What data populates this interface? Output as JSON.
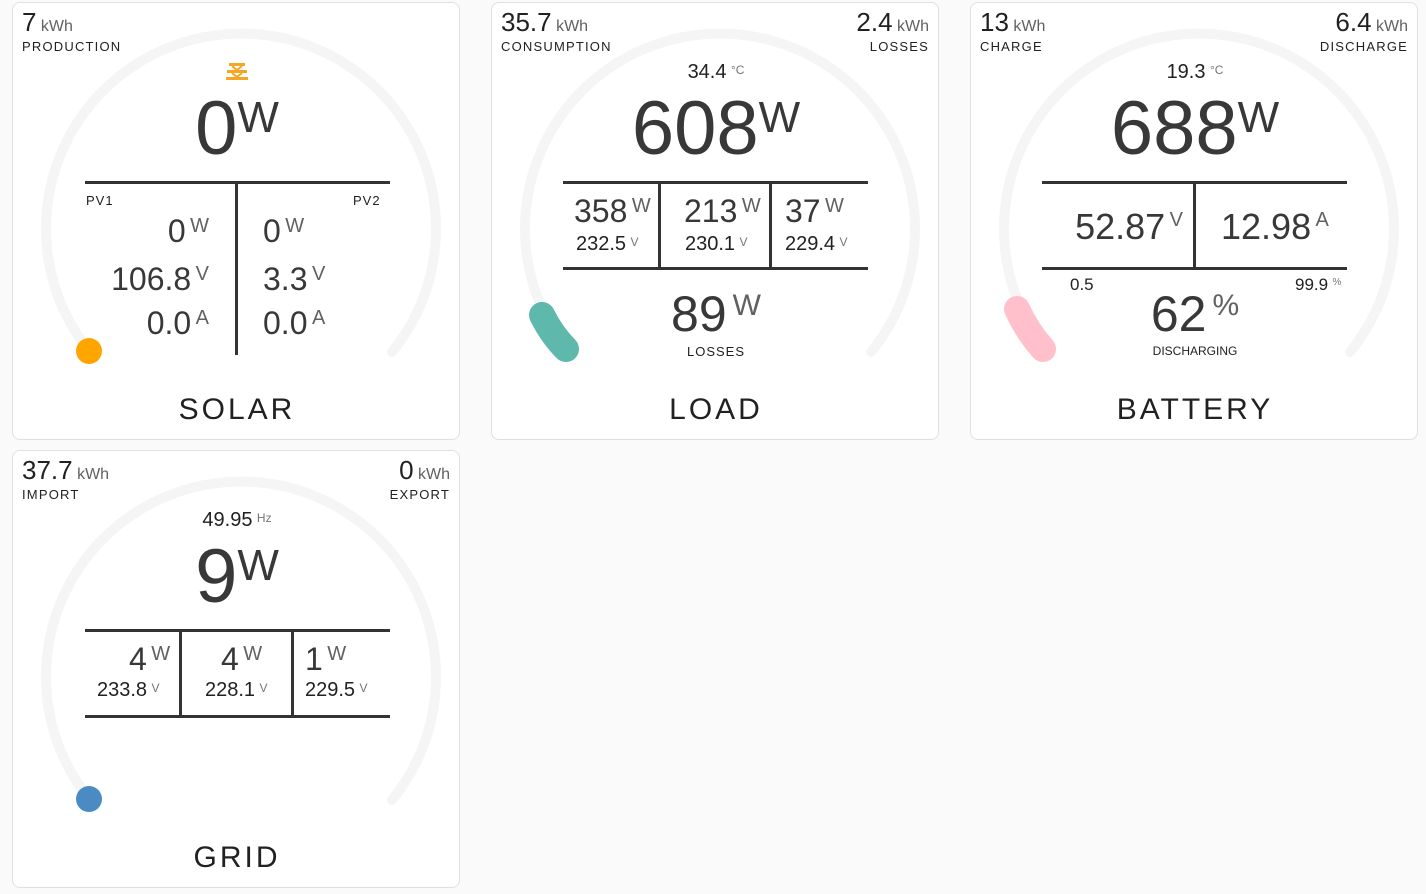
{
  "solar": {
    "title": "SOLAR",
    "production": {
      "value": "7",
      "unit": "kWh",
      "label": "PRODUCTION"
    },
    "power": {
      "value": "0",
      "unit": "W"
    },
    "pv1": {
      "label": "PV1",
      "power": "0",
      "power_unit": "W",
      "voltage": "106.8",
      "voltage_unit": "V",
      "current": "0.0",
      "current_unit": "A"
    },
    "pv2": {
      "label": "PV2",
      "power": "0",
      "power_unit": "W",
      "voltage": "3.3",
      "voltage_unit": "V",
      "current": "0.0",
      "current_unit": "A"
    },
    "indicator_color": "#ffa500",
    "icon": "solar-panel-sun-icon"
  },
  "load": {
    "title": "LOAD",
    "consumption": {
      "value": "35.7",
      "unit": "kWh",
      "label": "CONSUMPTION"
    },
    "losses_energy": {
      "value": "2.4",
      "unit": "kWh",
      "label": "LOSSES"
    },
    "temperature": {
      "value": "34.4",
      "unit": "°C"
    },
    "power": {
      "value": "608",
      "unit": "W"
    },
    "phases": [
      {
        "power": "358",
        "power_unit": "W",
        "voltage": "232.5",
        "voltage_unit": "V"
      },
      {
        "power": "213",
        "power_unit": "W",
        "voltage": "230.1",
        "voltage_unit": "V"
      },
      {
        "power": "37",
        "power_unit": "W",
        "voltage": "229.4",
        "voltage_unit": "V"
      }
    ],
    "losses_power": {
      "value": "89",
      "unit": "W",
      "label": "LOSSES"
    },
    "indicator_color": "#5fb8ac"
  },
  "battery": {
    "title": "BATTERY",
    "charge": {
      "value": "13",
      "unit": "kWh",
      "label": "CHARGE"
    },
    "discharge": {
      "value": "6.4",
      "unit": "kWh",
      "label": "DISCHARGE"
    },
    "temperature": {
      "value": "19.3",
      "unit": "°C"
    },
    "power": {
      "value": "688",
      "unit": "W"
    },
    "voltage": {
      "value": "52.87",
      "unit": "V"
    },
    "current": {
      "value": "12.98",
      "unit": "A"
    },
    "min_label": "0.5",
    "max_label": "99.9",
    "max_unit": "%",
    "soc": {
      "value": "62",
      "unit": "%",
      "label": "DISCHARGING"
    },
    "indicator_color": "#ffc0cb"
  },
  "grid": {
    "title": "GRID",
    "import": {
      "value": "37.7",
      "unit": "kWh",
      "label": "IMPORT"
    },
    "export": {
      "value": "0",
      "unit": "kWh",
      "label": "EXPORT"
    },
    "frequency": {
      "value": "49.95",
      "unit": "Hz"
    },
    "power": {
      "value": "9",
      "unit": "W"
    },
    "phases": [
      {
        "power": "4",
        "power_unit": "W",
        "voltage": "233.8",
        "voltage_unit": "V"
      },
      {
        "power": "4",
        "power_unit": "W",
        "voltage": "228.1",
        "voltage_unit": "V"
      },
      {
        "power": "1",
        "power_unit": "W",
        "voltage": "229.5",
        "voltage_unit": "V"
      }
    ],
    "indicator_color": "#4a8bc4"
  },
  "colors": {
    "gauge_track": "#f5f5f5",
    "divider": "#333333",
    "card_bg": "#ffffff",
    "page_bg": "#fafafa"
  }
}
